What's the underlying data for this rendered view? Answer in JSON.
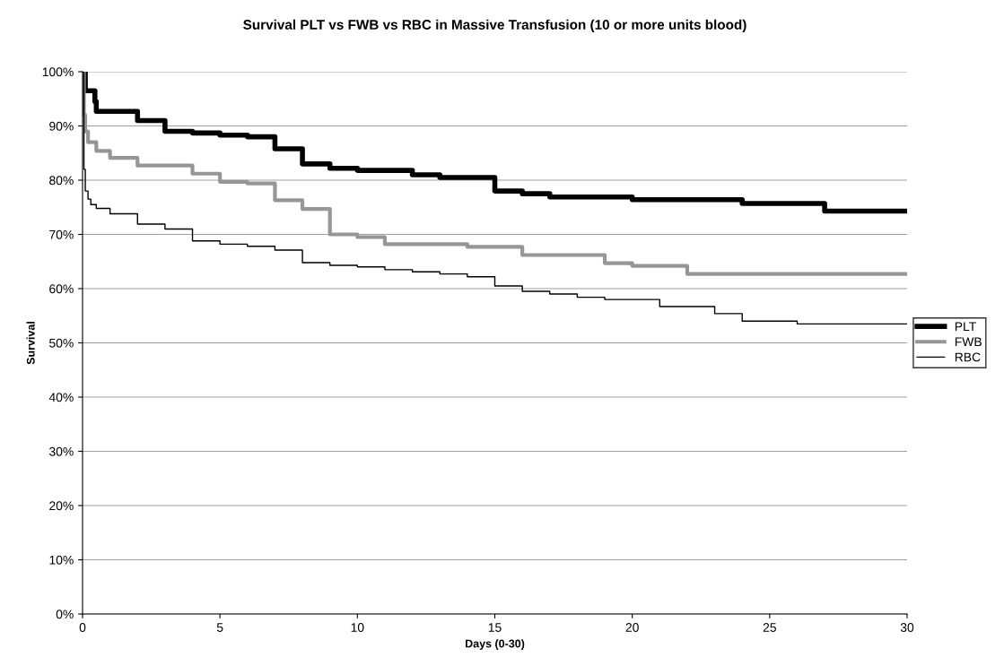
{
  "chart_data": {
    "type": "step",
    "title": "Survival PLT vs FWB vs RBC in Massive Transfusion (10 or more units blood)",
    "xlabel": "Days (0-30)",
    "ylabel": "Survival",
    "xlim": [
      0,
      30
    ],
    "xticks": [
      0,
      5,
      10,
      15,
      20,
      25,
      30
    ],
    "ylim": [
      0,
      100
    ],
    "yticks": [
      {
        "value": 0,
        "label": "0%"
      },
      {
        "value": 10,
        "label": "10%"
      },
      {
        "value": 20,
        "label": "20%"
      },
      {
        "value": 30,
        "label": "30%"
      },
      {
        "value": 40,
        "label": "40%"
      },
      {
        "value": 50,
        "label": "50%"
      },
      {
        "value": 60,
        "label": "60%"
      },
      {
        "value": 70,
        "label": "70%"
      },
      {
        "value": 80,
        "label": "80%"
      },
      {
        "value": 90,
        "label": "90%"
      },
      {
        "value": 100,
        "label": "100%"
      }
    ],
    "grid": "y",
    "legend": "right",
    "marker": "none",
    "line_style": "solid",
    "series": [
      {
        "name": "PLT",
        "color": "#000000",
        "x": [
          0,
          0.1,
          0.45,
          0.5,
          2,
          3,
          4,
          5,
          6,
          7,
          8,
          9,
          10,
          12,
          13,
          15,
          16,
          17,
          20,
          24,
          27,
          30
        ],
        "values": [
          100,
          96.5,
          94.5,
          92.7,
          91,
          89,
          88.7,
          88.3,
          88,
          85.8,
          83,
          82.2,
          81.8,
          81,
          80.5,
          78,
          77.5,
          76.9,
          76.4,
          75.7,
          74.3,
          74.3
        ]
      },
      {
        "name": "FWB",
        "color": "#969696",
        "x": [
          0,
          0.05,
          0.1,
          0.2,
          0.5,
          1,
          2,
          4,
          5,
          6,
          7,
          8,
          9,
          10,
          11,
          14,
          16,
          19,
          20,
          22,
          30
        ],
        "values": [
          100,
          92,
          89,
          87,
          85.4,
          84.1,
          82.7,
          81.2,
          79.7,
          79.4,
          76.3,
          74.7,
          70,
          69.5,
          68.2,
          67.7,
          66.2,
          64.7,
          64.2,
          62.7,
          62.7
        ]
      },
      {
        "name": "RBC",
        "color": "#000000",
        "x": [
          0,
          0.05,
          0.1,
          0.2,
          0.3,
          0.5,
          1,
          2,
          3,
          4,
          5,
          6,
          7,
          8,
          9,
          10,
          11,
          12,
          13,
          14,
          15,
          16,
          17,
          18,
          19,
          21,
          23,
          24,
          26,
          30
        ],
        "values": [
          100,
          82,
          78,
          76.5,
          75.5,
          74.8,
          73.8,
          71.9,
          71,
          68.8,
          68.2,
          67.8,
          67.1,
          64.8,
          64.3,
          64,
          63.5,
          63.1,
          62.7,
          62.2,
          60.5,
          59.5,
          59,
          58.4,
          58,
          56.7,
          55.4,
          54,
          53.5,
          53.5
        ]
      }
    ]
  }
}
